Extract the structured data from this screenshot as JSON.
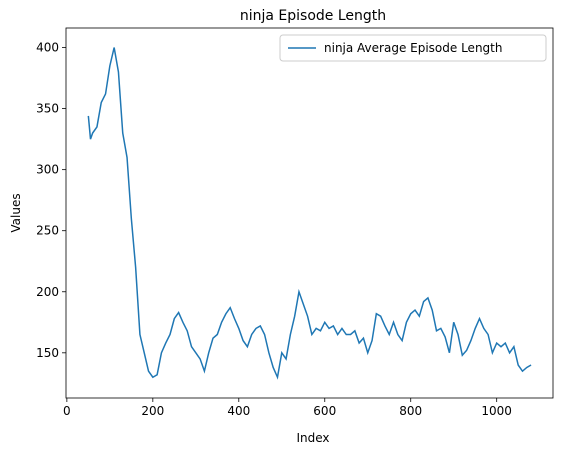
{
  "chart_data": {
    "type": "line",
    "title": "ninja Episode Length",
    "x_label": "Index",
    "y_label": "Values",
    "x": [
      50,
      55,
      60,
      70,
      80,
      90,
      100,
      110,
      120,
      130,
      140,
      150,
      160,
      170,
      180,
      190,
      200,
      210,
      220,
      230,
      240,
      250,
      260,
      270,
      280,
      290,
      300,
      310,
      320,
      330,
      340,
      350,
      360,
      370,
      380,
      390,
      400,
      410,
      420,
      430,
      440,
      450,
      460,
      470,
      480,
      490,
      500,
      510,
      520,
      530,
      540,
      550,
      560,
      570,
      580,
      590,
      600,
      610,
      620,
      630,
      640,
      650,
      660,
      670,
      680,
      690,
      700,
      710,
      720,
      730,
      740,
      750,
      760,
      770,
      780,
      790,
      800,
      810,
      820,
      830,
      840,
      850,
      860,
      870,
      880,
      890,
      900,
      910,
      920,
      930,
      940,
      950,
      960,
      970,
      980,
      990,
      1000,
      1010,
      1020,
      1030,
      1040,
      1050,
      1060,
      1070,
      1080
    ],
    "series": [
      {
        "name": "ninja Average Episode Length",
        "color": "#1f77b4",
        "values": [
          344,
          325,
          330,
          335,
          355,
          362,
          385,
          400,
          380,
          330,
          310,
          260,
          220,
          165,
          150,
          135,
          130,
          132,
          150,
          158,
          165,
          178,
          183,
          175,
          168,
          155,
          150,
          145,
          135,
          150,
          162,
          165,
          175,
          182,
          187,
          178,
          170,
          160,
          155,
          165,
          170,
          172,
          165,
          150,
          138,
          130,
          150,
          145,
          165,
          180,
          200,
          190,
          180,
          165,
          170,
          168,
          175,
          170,
          172,
          165,
          170,
          165,
          165,
          168,
          158,
          162,
          150,
          160,
          182,
          180,
          172,
          165,
          175,
          165,
          160,
          175,
          182,
          185,
          180,
          192,
          195,
          185,
          168,
          170,
          163,
          150,
          175,
          165,
          148,
          152,
          160,
          170,
          178,
          170,
          165,
          150,
          158,
          155,
          158,
          150,
          155,
          140,
          135,
          138,
          140
        ]
      }
    ],
    "xlim": [
      -2,
      1131
    ],
    "ylim": [
      113,
      416
    ],
    "xticks": [
      0,
      200,
      400,
      600,
      800,
      1000
    ],
    "yticks": [
      150,
      200,
      250,
      300,
      350,
      400
    ],
    "legend": "upper right"
  }
}
